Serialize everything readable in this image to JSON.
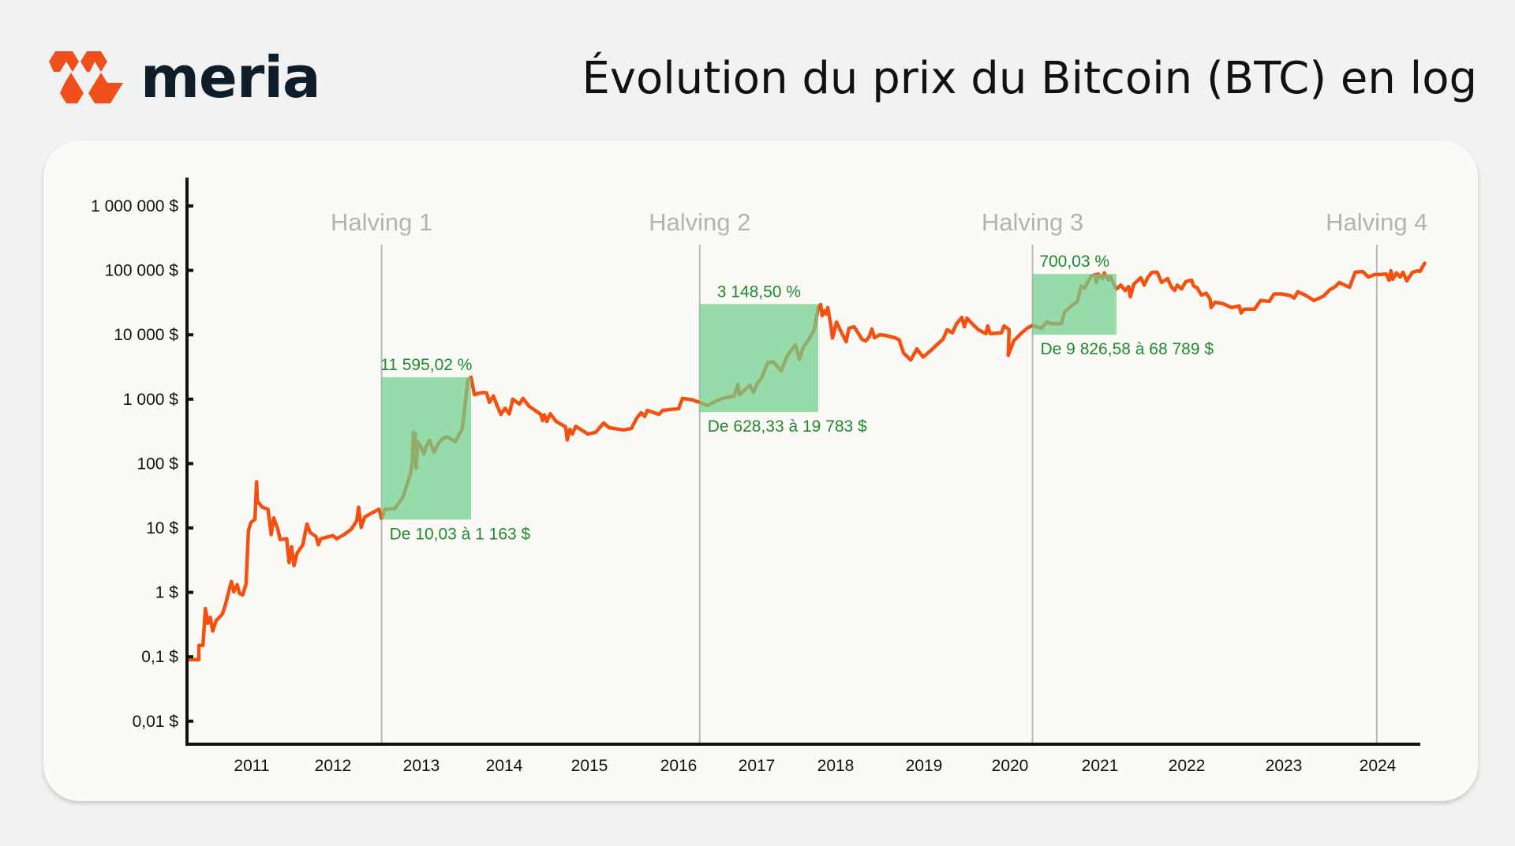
{
  "brand": {
    "name": "meria",
    "logo_icon": "meria-logo-icon",
    "accent_color": "#f04e1a",
    "text_color": "#0f1d2b"
  },
  "header": {
    "title": "Évolution du prix du Bitcoin (BTC) en log"
  },
  "colors": {
    "page_background": "#f2f2f3",
    "card_background": "#fbfaf7",
    "price_line": "#f4500f",
    "halving_line": "#b8b8b8",
    "halving_label": "#b3b3b3",
    "highlight_box": "#6fcf8c",
    "gain_text": "#1f8a2e",
    "axis": "#111111"
  },
  "chart_data": {
    "type": "line",
    "title": "Évolution du prix du Bitcoin (BTC) en log",
    "xlabel": "",
    "ylabel": "",
    "yscale": "log",
    "ylim": [
      0.005,
      2000000
    ],
    "grid": false,
    "legend": null,
    "y_ticks": [
      {
        "value": 1000000,
        "label": "1 000 000 $"
      },
      {
        "value": 100000,
        "label": "100 000 $"
      },
      {
        "value": 10000,
        "label": "10 000 $"
      },
      {
        "value": 1000,
        "label": "1 000 $"
      },
      {
        "value": 100,
        "label": "100 $"
      },
      {
        "value": 10,
        "label": "10 $"
      },
      {
        "value": 1,
        "label": "1 $"
      },
      {
        "value": 0.1,
        "label": "0,1 $"
      },
      {
        "value": 0.01,
        "label": "0,01 $"
      }
    ],
    "x_ticks": [
      "2011",
      "2012",
      "2013",
      "2014",
      "2015",
      "2016",
      "2017",
      "2018",
      "2019",
      "2020",
      "2021",
      "2022",
      "2023",
      "2024"
    ],
    "halvings": [
      {
        "label": "Halving 1",
        "year": 2012.55
      },
      {
        "label": "Halving 2",
        "year": 2016.27
      },
      {
        "label": "Halving 3",
        "year": 2020.25
      },
      {
        "label": "Halving 4",
        "year": 2023.99
      }
    ],
    "highlights": [
      {
        "x_start": 2012.55,
        "x_end": 2013.6,
        "price_from": 10.03,
        "price_to": 1163,
        "gain_label": "11 595,02 %",
        "range_label": "De 10,03 à 1 163 $",
        "y_top_price": 2190,
        "y_bottom_price": 13.5
      },
      {
        "x_start": 2016.27,
        "x_end": 2017.78,
        "price_from": 628.33,
        "price_to": 19783,
        "gain_label": "3 148,50 %",
        "range_label": "De 628,33 à 19 783 $",
        "y_top_price": 30000,
        "y_bottom_price": 630
      },
      {
        "x_start": 2020.25,
        "x_end": 2021.19,
        "price_from": 9826.58,
        "price_to": 68789,
        "gain_label": "700,03 %",
        "range_label": "De 9 826,58 à 68 789 $",
        "y_top_price": 88000,
        "y_bottom_price": 10000
      }
    ],
    "series": [
      {
        "name": "BTC",
        "points": [
          [
            2010.22,
            0.09
          ],
          [
            2010.35,
            0.09
          ],
          [
            2010.35,
            0.15
          ],
          [
            2010.4,
            0.15
          ],
          [
            2010.43,
            0.56
          ],
          [
            2010.46,
            0.33
          ],
          [
            2010.49,
            0.41
          ],
          [
            2010.52,
            0.25
          ],
          [
            2010.56,
            0.36
          ],
          [
            2010.64,
            0.46
          ],
          [
            2010.68,
            0.66
          ],
          [
            2010.72,
            1.07
          ],
          [
            2010.75,
            1.48
          ],
          [
            2010.78,
            1.02
          ],
          [
            2010.82,
            1.32
          ],
          [
            2010.85,
            0.96
          ],
          [
            2010.89,
            0.91
          ],
          [
            2010.93,
            1.35
          ],
          [
            2010.96,
            9.1
          ],
          [
            2010.99,
            12.2
          ],
          [
            2011.04,
            13.6
          ],
          [
            2011.06,
            52
          ],
          [
            2011.07,
            26
          ],
          [
            2011.13,
            21
          ],
          [
            2011.2,
            19.6
          ],
          [
            2011.24,
            7.9
          ],
          [
            2011.27,
            14.4
          ],
          [
            2011.32,
            9.7
          ],
          [
            2011.35,
            6.6
          ],
          [
            2011.43,
            6.8
          ],
          [
            2011.46,
            2.9
          ],
          [
            2011.49,
            5.1
          ],
          [
            2011.52,
            2.6
          ],
          [
            2011.56,
            4.1
          ],
          [
            2011.63,
            5.5
          ],
          [
            2011.68,
            11.5
          ],
          [
            2011.72,
            8.5
          ],
          [
            2011.79,
            7.4
          ],
          [
            2011.82,
            5.5
          ],
          [
            2011.85,
            6.8
          ],
          [
            2012.0,
            7.6
          ],
          [
            2012.04,
            6.8
          ],
          [
            2012.12,
            7.8
          ],
          [
            2012.21,
            9.6
          ],
          [
            2012.27,
            13
          ],
          [
            2012.29,
            21
          ],
          [
            2012.32,
            10.2
          ],
          [
            2012.36,
            14.8
          ],
          [
            2012.47,
            18
          ],
          [
            2012.52,
            19.6
          ],
          [
            2012.55,
            14.1
          ],
          [
            2012.59,
            19.6
          ],
          [
            2012.7,
            20
          ],
          [
            2012.79,
            30
          ],
          [
            2012.83,
            44
          ],
          [
            2012.88,
            71
          ],
          [
            2012.9,
            118
          ],
          [
            2012.91,
            305
          ],
          [
            2012.92,
            172
          ],
          [
            2012.93,
            290
          ],
          [
            2012.94,
            85
          ],
          [
            2012.96,
            218
          ],
          [
            2012.99,
            188
          ],
          [
            2013.03,
            141
          ],
          [
            2013.06,
            188
          ],
          [
            2013.1,
            230
          ],
          [
            2013.15,
            150
          ],
          [
            2013.2,
            200
          ],
          [
            2013.25,
            241
          ],
          [
            2013.31,
            263
          ],
          [
            2013.41,
            218
          ],
          [
            2013.46,
            290
          ],
          [
            2013.49,
            333
          ],
          [
            2013.51,
            506
          ],
          [
            2013.56,
            1950
          ],
          [
            2013.6,
            2190
          ],
          [
            2013.64,
            1170
          ],
          [
            2013.7,
            1240
          ],
          [
            2013.76,
            1270
          ],
          [
            2013.79,
            1240
          ],
          [
            2013.82,
            890
          ],
          [
            2013.87,
            1120
          ],
          [
            2013.91,
            815
          ],
          [
            2013.96,
            580
          ],
          [
            2014.01,
            720
          ],
          [
            2014.06,
            590
          ],
          [
            2014.1,
            1000
          ],
          [
            2014.18,
            840
          ],
          [
            2014.22,
            1030
          ],
          [
            2014.29,
            780
          ],
          [
            2014.43,
            580
          ],
          [
            2014.45,
            466
          ],
          [
            2014.47,
            570
          ],
          [
            2014.5,
            450
          ],
          [
            2014.54,
            595
          ],
          [
            2014.61,
            450
          ],
          [
            2014.72,
            370
          ],
          [
            2014.74,
            233
          ],
          [
            2014.77,
            340
          ],
          [
            2014.8,
            288
          ],
          [
            2014.84,
            380
          ],
          [
            2014.98,
            288
          ],
          [
            2015.07,
            305
          ],
          [
            2015.16,
            428
          ],
          [
            2015.22,
            360
          ],
          [
            2015.38,
            333
          ],
          [
            2015.47,
            350
          ],
          [
            2015.53,
            505
          ],
          [
            2015.58,
            615
          ],
          [
            2015.62,
            540
          ],
          [
            2015.65,
            670
          ],
          [
            2015.78,
            580
          ],
          [
            2015.82,
            670
          ],
          [
            2016.0,
            710
          ],
          [
            2016.05,
            1030
          ],
          [
            2016.17,
            980
          ],
          [
            2016.27,
            890
          ],
          [
            2016.37,
            800
          ],
          [
            2016.45,
            890
          ],
          [
            2016.56,
            1030
          ],
          [
            2016.71,
            1120
          ],
          [
            2016.76,
            1700
          ],
          [
            2016.78,
            1170
          ],
          [
            2016.91,
            1650
          ],
          [
            2016.96,
            1270
          ],
          [
            2017.01,
            1800
          ],
          [
            2017.06,
            2100
          ],
          [
            2017.14,
            3700
          ],
          [
            2017.21,
            3800
          ],
          [
            2017.31,
            2750
          ],
          [
            2017.39,
            4800
          ],
          [
            2017.49,
            6950
          ],
          [
            2017.54,
            4150
          ],
          [
            2017.59,
            6400
          ],
          [
            2017.66,
            8500
          ],
          [
            2017.73,
            12000
          ],
          [
            2017.78,
            26500
          ],
          [
            2017.81,
            29500
          ],
          [
            2017.83,
            19800
          ],
          [
            2017.86,
            23500
          ],
          [
            2017.88,
            21000
          ],
          [
            2017.9,
            26500
          ],
          [
            2017.94,
            14000
          ],
          [
            2017.96,
            8900
          ],
          [
            2018.01,
            15800
          ],
          [
            2018.05,
            12000
          ],
          [
            2018.12,
            7800
          ],
          [
            2018.15,
            12600
          ],
          [
            2018.21,
            13300
          ],
          [
            2018.3,
            8500
          ],
          [
            2018.34,
            8000
          ],
          [
            2018.38,
            9300
          ],
          [
            2018.41,
            12300
          ],
          [
            2018.44,
            9000
          ],
          [
            2018.5,
            10000
          ],
          [
            2018.56,
            9800
          ],
          [
            2018.67,
            9000
          ],
          [
            2018.72,
            8300
          ],
          [
            2018.77,
            5200
          ],
          [
            2018.85,
            4050
          ],
          [
            2018.92,
            6050
          ],
          [
            2018.99,
            4500
          ],
          [
            2019.08,
            5700
          ],
          [
            2019.16,
            7200
          ],
          [
            2019.22,
            8500
          ],
          [
            2019.27,
            12000
          ],
          [
            2019.33,
            10700
          ],
          [
            2019.38,
            14900
          ],
          [
            2019.44,
            18600
          ],
          [
            2019.47,
            13300
          ],
          [
            2019.5,
            18100
          ],
          [
            2019.56,
            14900
          ],
          [
            2019.63,
            12000
          ],
          [
            2019.72,
            10400
          ],
          [
            2019.74,
            13700
          ],
          [
            2019.77,
            10400
          ],
          [
            2019.9,
            10700
          ],
          [
            2019.93,
            13700
          ],
          [
            2019.99,
            12000
          ],
          [
            2019.98,
            4800
          ],
          [
            2020.04,
            8000
          ],
          [
            2020.13,
            10700
          ],
          [
            2020.19,
            12600
          ],
          [
            2020.25,
            14000
          ],
          [
            2020.35,
            12600
          ],
          [
            2020.41,
            15800
          ],
          [
            2020.46,
            14900
          ],
          [
            2020.57,
            14900
          ],
          [
            2020.61,
            22900
          ],
          [
            2020.7,
            29500
          ],
          [
            2020.75,
            33000
          ],
          [
            2020.79,
            57500
          ],
          [
            2020.83,
            53000
          ],
          [
            2020.9,
            81000
          ],
          [
            2020.95,
            86000
          ],
          [
            2020.96,
            65000
          ],
          [
            2020.98,
            88000
          ],
          [
            2021.03,
            74500
          ],
          [
            2021.05,
            91000
          ],
          [
            2021.1,
            70500
          ],
          [
            2021.12,
            81000
          ],
          [
            2021.16,
            61000
          ],
          [
            2021.19,
            51500
          ],
          [
            2021.24,
            59000
          ],
          [
            2021.29,
            48500
          ],
          [
            2021.33,
            56000
          ],
          [
            2021.35,
            39000
          ],
          [
            2021.39,
            61000
          ],
          [
            2021.47,
            77000
          ],
          [
            2021.51,
            59000
          ],
          [
            2021.55,
            77000
          ],
          [
            2021.6,
            93500
          ],
          [
            2021.66,
            93500
          ],
          [
            2021.71,
            65000
          ],
          [
            2021.78,
            74500
          ],
          [
            2021.82,
            56000
          ],
          [
            2021.86,
            48500
          ],
          [
            2021.89,
            59000
          ],
          [
            2021.94,
            51500
          ],
          [
            2021.99,
            67000
          ],
          [
            2022.05,
            70500
          ],
          [
            2022.07,
            57500
          ],
          [
            2022.11,
            53000
          ],
          [
            2022.15,
            41500
          ],
          [
            2022.2,
            44000
          ],
          [
            2022.24,
            36000
          ],
          [
            2022.25,
            26500
          ],
          [
            2022.29,
            32000
          ],
          [
            2022.37,
            30500
          ],
          [
            2022.46,
            26500
          ],
          [
            2022.54,
            28000
          ],
          [
            2022.56,
            21700
          ],
          [
            2022.59,
            25000
          ],
          [
            2022.7,
            25000
          ],
          [
            2022.76,
            34000
          ],
          [
            2022.85,
            33000
          ],
          [
            2022.9,
            43000
          ],
          [
            2022.98,
            43000
          ],
          [
            2023.07,
            40500
          ],
          [
            2023.11,
            37000
          ],
          [
            2023.15,
            46500
          ],
          [
            2023.24,
            40500
          ],
          [
            2023.32,
            34000
          ],
          [
            2023.42,
            39500
          ],
          [
            2023.49,
            50000
          ],
          [
            2023.55,
            56000
          ],
          [
            2023.59,
            65000
          ],
          [
            2023.7,
            54500
          ],
          [
            2023.76,
            93500
          ],
          [
            2023.84,
            96000
          ],
          [
            2023.9,
            79000
          ],
          [
            2023.97,
            86000
          ],
          [
            2024.03,
            86000
          ],
          [
            2024.09,
            88000
          ],
          [
            2024.12,
            70500
          ],
          [
            2024.14,
            99000
          ],
          [
            2024.16,
            72500
          ],
          [
            2024.2,
            91000
          ],
          [
            2024.24,
            79000
          ],
          [
            2024.27,
            93500
          ],
          [
            2024.31,
            68500
          ],
          [
            2024.37,
            93500
          ],
          [
            2024.43,
            99000
          ],
          [
            2024.45,
            96000
          ],
          [
            2024.5,
            129000
          ]
        ]
      }
    ]
  }
}
